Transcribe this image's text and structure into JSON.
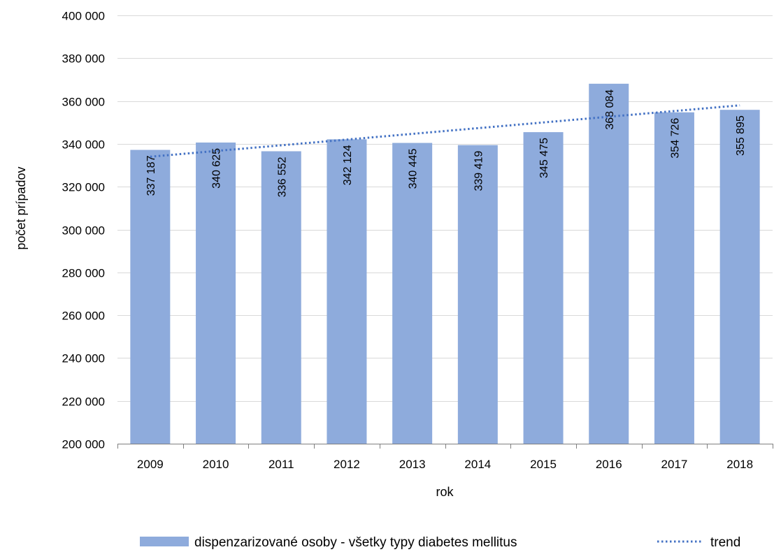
{
  "chart_data": {
    "type": "bar",
    "title": "",
    "xlabel": "rok",
    "ylabel": "počet prípadov",
    "categories": [
      "2009",
      "2010",
      "2011",
      "2012",
      "2013",
      "2014",
      "2015",
      "2016",
      "2017",
      "2018"
    ],
    "series": [
      {
        "name": "dispenzarizované osoby -  všetky typy diabetes mellitus",
        "values": [
          337187,
          340625,
          336552,
          342124,
          340445,
          339419,
          345475,
          368084,
          354726,
          355895
        ],
        "data_labels": [
          "337 187",
          "340 625",
          "336 552",
          "342 124",
          "340 445",
          "339 419",
          "345 475",
          "368 084",
          "354 726",
          "355 895"
        ],
        "color": "#8eabdc"
      }
    ],
    "trendline": {
      "name": "trend",
      "kind": "linear",
      "style": "dotted",
      "color": "#4472c4",
      "start": 334000,
      "end": 358000
    },
    "ylim": [
      200000,
      400000
    ],
    "yticks": [
      200000,
      220000,
      240000,
      260000,
      280000,
      300000,
      320000,
      340000,
      360000,
      380000,
      400000
    ],
    "ytick_labels": [
      "200 000",
      "220 000",
      "240 000",
      "260 000",
      "280 000",
      "300 000",
      "320 000",
      "340 000",
      "360 000",
      "380 000",
      "400 000"
    ],
    "grid": true,
    "legend": {
      "position": "bottom",
      "entries": [
        "dispenzarizované osoby -  všetky typy diabetes mellitus",
        "trend"
      ]
    }
  }
}
